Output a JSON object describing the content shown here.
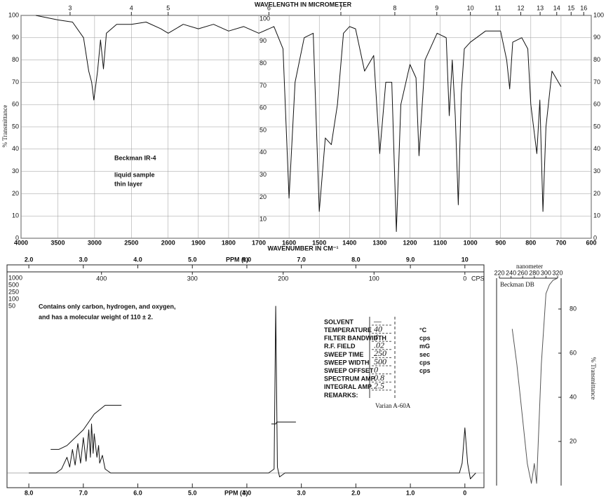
{
  "chart_data": [
    {
      "type": "line",
      "title": "WAVELENGTH IN MICROMETER",
      "xlabel": "WAVENUMBER IN CM⁻¹",
      "ylabel": "% Transmittance",
      "annotations": [
        "Beckman IR-4",
        "liquid sample",
        "thin layer"
      ],
      "xlim": [
        4000,
        600
      ],
      "xticks": [
        4000,
        3500,
        3000,
        2500,
        2000,
        1900,
        1800,
        1700,
        1600,
        1500,
        1400,
        1300,
        1200,
        1100,
        1000,
        900,
        800,
        700,
        600
      ],
      "x2ticks": [
        3,
        4,
        5,
        6,
        7,
        8,
        9,
        10,
        11,
        12,
        13,
        14,
        15,
        16
      ],
      "ylim": [
        0,
        100
      ],
      "yticks": [
        0,
        10,
        20,
        30,
        40,
        50,
        60,
        70,
        80,
        90,
        100
      ],
      "grid": true,
      "series": [
        {
          "color": "#111111",
          "x": [
            3800,
            3500,
            3300,
            3150,
            3080,
            3040,
            3010,
            2960,
            2920,
            2880,
            2840,
            2700,
            2500,
            2300,
            2100,
            2000,
            1950,
            1900,
            1850,
            1800,
            1750,
            1700,
            1650,
            1620,
            1600,
            1580,
            1550,
            1520,
            1500,
            1480,
            1460,
            1440,
            1420,
            1400,
            1380,
            1350,
            1320,
            1300,
            1280,
            1260,
            1245,
            1230,
            1200,
            1180,
            1170,
            1150,
            1110,
            1080,
            1070,
            1060,
            1050,
            1040,
            1030,
            1020,
            1000,
            980,
            950,
            900,
            880,
            870,
            860,
            830,
            810,
            800,
            780,
            770,
            760,
            750,
            730,
            700
          ],
          "values": [
            100,
            98,
            97,
            90,
            75,
            70,
            62,
            75,
            89,
            76,
            92,
            96,
            96,
            97,
            94,
            92,
            96,
            94,
            96,
            93,
            95,
            92,
            95,
            85,
            18,
            70,
            90,
            92,
            12,
            45,
            42,
            60,
            92,
            95,
            94,
            75,
            82,
            38,
            70,
            70,
            3,
            60,
            78,
            72,
            37,
            80,
            92,
            90,
            55,
            80,
            55,
            15,
            65,
            85,
            88,
            90,
            93,
            93,
            80,
            67,
            88,
            90,
            85,
            60,
            38,
            62,
            12,
            50,
            75,
            68
          ]
        }
      ]
    },
    {
      "type": "line",
      "xlabel": "PPM (δ)",
      "x2label": "PPM (τ)",
      "x3label": "CPS",
      "annotations": [
        "Contains only   carbon, hydrogen, and oxygen,",
        "and has a molecular weight of 110 ± 2.",
        "Varian A-60A"
      ],
      "amplitude_marks": [
        1000,
        500,
        250,
        100,
        50
      ],
      "parameters": [
        {
          "label": "SOLVENT",
          "value": "—",
          "unit": ""
        },
        {
          "label": "TEMPERATURE",
          "value": "40",
          "unit": "°C"
        },
        {
          "label": "FILTER BANDWIDTH",
          "value": "4",
          "unit": "cps"
        },
        {
          "label": "R.F. FIELD",
          "value": ".02",
          "unit": "mG"
        },
        {
          "label": "SWEEP TIME",
          "value": "250",
          "unit": "sec"
        },
        {
          "label": "SWEEP WIDTH",
          "value": "500",
          "unit": "cps"
        },
        {
          "label": "SWEEP OFFSET",
          "value": "0",
          "unit": "cps"
        },
        {
          "label": "SPECTRUM AMP.",
          "value": "0.8",
          "unit": ""
        },
        {
          "label": "INTEGRAL AMP.",
          "value": "2.5",
          "unit": ""
        },
        {
          "label": "REMARKS:",
          "value": "",
          "unit": ""
        }
      ],
      "xlim": [
        8.4,
        -0.35
      ],
      "xticks": [
        {
          "value": 8,
          "label": "8.0"
        },
        {
          "value": 7,
          "label": "7.0"
        },
        {
          "value": 6,
          "label": "6.0"
        },
        {
          "value": 5,
          "label": "5.0"
        },
        {
          "value": 4,
          "label": "4.0"
        },
        {
          "value": 3,
          "label": "3.0"
        },
        {
          "value": 2,
          "label": "2.0"
        },
        {
          "value": 1,
          "label": "1.0"
        },
        0
      ],
      "x2lim": [
        1.6,
        10.35
      ],
      "x2ticks": [
        {
          "value": 2,
          "label": "2.0"
        },
        {
          "value": 3,
          "label": "3.0"
        },
        {
          "value": 4,
          "label": "4.0"
        },
        {
          "value": 5,
          "label": "5.0"
        },
        {
          "value": 6,
          "label": "6.0"
        },
        {
          "value": 7,
          "label": "7.0"
        },
        {
          "value": 8,
          "label": "8.0"
        },
        {
          "value": 9,
          "label": "9.0"
        },
        10
      ],
      "x3lim": [
        504,
        -21
      ],
      "x3ticks": [
        400,
        300,
        200,
        100,
        0
      ],
      "ylim": [
        0,
        100
      ],
      "series": [
        {
          "name": "spectrum",
          "color": "#111111",
          "x": [
            8.0,
            7.5,
            7.4,
            7.3,
            7.25,
            7.2,
            7.15,
            7.1,
            7.05,
            7.0,
            6.95,
            6.9,
            6.87,
            6.85,
            6.82,
            6.8,
            6.75,
            6.72,
            6.7,
            6.65,
            6.6,
            6.5,
            3.6,
            3.5,
            3.47,
            3.44,
            3.4,
            3.3,
            0.1,
            0.05,
            0.0,
            -0.05,
            -0.1,
            -0.2
          ],
          "values": [
            0,
            0,
            2,
            8,
            3,
            12,
            4,
            15,
            5,
            18,
            6,
            22,
            8,
            25,
            10,
            20,
            8,
            14,
            5,
            9,
            2,
            0,
            0,
            2,
            85,
            3,
            -2,
            0,
            0,
            5,
            23,
            5,
            -3,
            0
          ]
        },
        {
          "name": "integral",
          "color": "#111111",
          "x": [
            7.6,
            7.45,
            7.3,
            7.0,
            6.8,
            6.6,
            6.3,
            null,
            3.55,
            3.47,
            3.45,
            3.1
          ],
          "values": [
            12,
            12,
            14,
            22,
            30,
            34.5,
            34.5,
            null,
            25,
            25,
            26,
            26
          ]
        }
      ]
    },
    {
      "type": "line",
      "title": "nanometer",
      "ylabel": "% Transmittance",
      "annotations": [
        "Beckman DB"
      ],
      "xlim": [
        220,
        320
      ],
      "xticks": [
        220,
        240,
        260,
        280,
        300,
        320
      ],
      "ylim": [
        0,
        100
      ],
      "yticks": [
        20,
        40,
        60,
        80
      ],
      "series": [
        {
          "color": "#555555",
          "x": [
            242,
            250,
            260,
            268,
            275,
            280,
            284,
            292,
            300,
            306,
            312,
            320
          ],
          "values": [
            71,
            55,
            30,
            10,
            1,
            10,
            1,
            55,
            87,
            91,
            93,
            94
          ]
        }
      ]
    }
  ]
}
